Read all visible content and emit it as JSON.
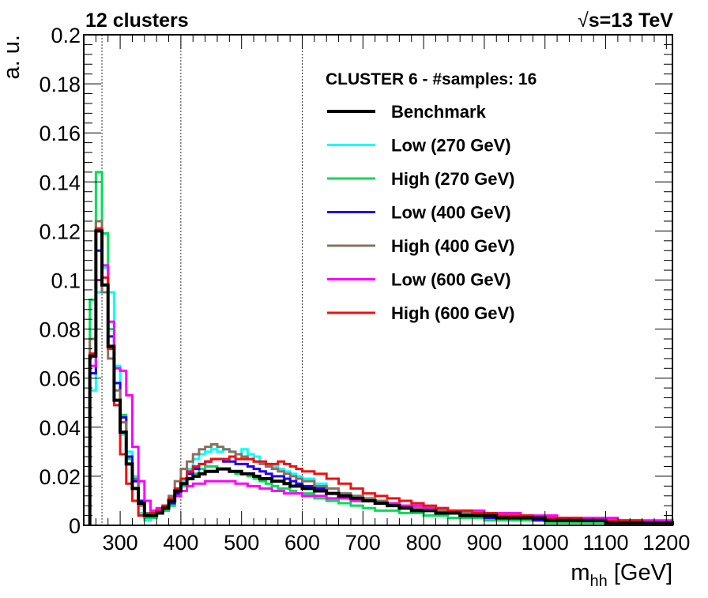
{
  "header": {
    "left": "12 clusters",
    "right_sqrt": "√",
    "right_rest": "s=13 TeV"
  },
  "chart_data": {
    "type": "line",
    "title": "12 clusters",
    "annotation": "√s=13 TeV",
    "xlabel": "m_hh [GeV]",
    "xlabel_main": "m",
    "xlabel_sub": "hh",
    "xlabel_unit": "[GeV]",
    "ylabel": "a. u.",
    "xlim": [
      240,
      1210
    ],
    "ylim": [
      0,
      0.2
    ],
    "xticks": [
      300,
      400,
      500,
      600,
      700,
      800,
      900,
      1000,
      1100,
      1200
    ],
    "yticks": [
      0,
      0.02,
      0.04,
      0.06,
      0.08,
      0.1,
      0.12,
      0.14,
      0.16,
      0.18,
      0.2
    ],
    "ytick_labels": [
      "0",
      "0.02",
      "0.04",
      "0.06",
      "0.08",
      "0.1",
      "0.12",
      "0.14",
      "0.16",
      "0.18",
      "0.2"
    ],
    "vlines": [
      270,
      400,
      600
    ],
    "bin_edges": [
      250,
      260,
      270,
      280,
      290,
      300,
      310,
      320,
      330,
      340,
      350,
      360,
      370,
      380,
      390,
      400,
      410,
      420,
      430,
      440,
      450,
      460,
      470,
      480,
      490,
      500,
      510,
      520,
      530,
      540,
      550,
      560,
      570,
      580,
      590,
      600,
      620,
      640,
      660,
      680,
      700,
      720,
      740,
      760,
      780,
      800,
      820,
      840,
      860,
      880,
      900,
      920,
      940,
      960,
      980,
      1000,
      1020,
      1040,
      1060,
      1080,
      1100,
      1120,
      1140,
      1160,
      1180,
      1200,
      1210
    ],
    "legend_title": "CLUSTER 6 - #samples: 16",
    "legend_location": "top-right",
    "series": [
      {
        "name": "Low (270 GeV)",
        "color": "#00ffff",
        "width": 3,
        "values": [
          0.055,
          0.095,
          0.105,
          0.095,
          0.065,
          0.037,
          0.03,
          0.02,
          0.005,
          0.002,
          0.003,
          0.006,
          0.006,
          0.008,
          0.013,
          0.018,
          0.023,
          0.027,
          0.029,
          0.03,
          0.031,
          0.03,
          0.031,
          0.03,
          0.029,
          0.031,
          0.029,
          0.028,
          0.026,
          0.025,
          0.024,
          0.023,
          0.022,
          0.021,
          0.02,
          0.019,
          0.017,
          0.015,
          0.013,
          0.012,
          0.011,
          0.01,
          0.009,
          0.008,
          0.007,
          0.007,
          0.006,
          0.005,
          0.005,
          0.004,
          0.004,
          0.003,
          0.003,
          0.003,
          0.003,
          0.002,
          0.002,
          0.002,
          0.002,
          0.002,
          0.001,
          0.001,
          0.001,
          0.001,
          0.001,
          0.001
        ]
      },
      {
        "name": "High (270 GeV)",
        "color": "#00dd55",
        "width": 3,
        "values": [
          0.092,
          0.144,
          0.119,
          0.08,
          0.058,
          0.045,
          0.027,
          0.018,
          0.004,
          0.003,
          0.003,
          0.005,
          0.006,
          0.008,
          0.012,
          0.016,
          0.019,
          0.021,
          0.023,
          0.024,
          0.024,
          0.023,
          0.023,
          0.022,
          0.021,
          0.021,
          0.02,
          0.019,
          0.018,
          0.017,
          0.016,
          0.015,
          0.015,
          0.014,
          0.013,
          0.013,
          0.011,
          0.01,
          0.009,
          0.008,
          0.007,
          0.006,
          0.006,
          0.005,
          0.005,
          0.004,
          0.004,
          0.003,
          0.003,
          0.003,
          0.002,
          0.002,
          0.002,
          0.002,
          0.002,
          0.001,
          0.001,
          0.001,
          0.001,
          0.001,
          0.001,
          0.001,
          0.001,
          0.001,
          0.001,
          0.001
        ]
      },
      {
        "name": "Low (400 GeV)",
        "color": "#2200ee",
        "width": 3,
        "values": [
          0.062,
          0.112,
          0.095,
          0.077,
          0.058,
          0.044,
          0.028,
          0.018,
          0.01,
          0.005,
          0.004,
          0.005,
          0.007,
          0.009,
          0.013,
          0.017,
          0.021,
          0.023,
          0.025,
          0.026,
          0.027,
          0.027,
          0.026,
          0.026,
          0.025,
          0.025,
          0.024,
          0.023,
          0.022,
          0.021,
          0.02,
          0.02,
          0.019,
          0.018,
          0.017,
          0.016,
          0.015,
          0.013,
          0.012,
          0.011,
          0.01,
          0.009,
          0.008,
          0.007,
          0.006,
          0.006,
          0.005,
          0.005,
          0.004,
          0.004,
          0.003,
          0.003,
          0.003,
          0.003,
          0.002,
          0.002,
          0.002,
          0.002,
          0.002,
          0.002,
          0.001,
          0.001,
          0.001,
          0.001,
          0.001,
          0.001
        ]
      },
      {
        "name": "High (400 GeV)",
        "color": "#8b7060",
        "width": 3,
        "values": [
          0.076,
          0.124,
          0.095,
          0.068,
          0.055,
          0.042,
          0.025,
          0.019,
          0.008,
          0.005,
          0.004,
          0.006,
          0.008,
          0.012,
          0.018,
          0.023,
          0.026,
          0.029,
          0.031,
          0.032,
          0.033,
          0.032,
          0.031,
          0.03,
          0.029,
          0.028,
          0.027,
          0.026,
          0.025,
          0.024,
          0.023,
          0.022,
          0.021,
          0.02,
          0.019,
          0.018,
          0.016,
          0.015,
          0.013,
          0.012,
          0.011,
          0.01,
          0.009,
          0.008,
          0.007,
          0.007,
          0.006,
          0.005,
          0.005,
          0.004,
          0.004,
          0.003,
          0.003,
          0.003,
          0.003,
          0.002,
          0.002,
          0.002,
          0.002,
          0.002,
          0.001,
          0.001,
          0.001,
          0.001,
          0.001,
          0.001
        ]
      },
      {
        "name": "Low (600 GeV)",
        "color": "#ff00ff",
        "width": 3,
        "values": [
          0.065,
          0.1,
          0.106,
          0.083,
          0.064,
          0.063,
          0.053,
          0.032,
          0.018,
          0.01,
          0.006,
          0.007,
          0.008,
          0.011,
          0.012,
          0.014,
          0.016,
          0.017,
          0.017,
          0.018,
          0.018,
          0.018,
          0.018,
          0.018,
          0.017,
          0.017,
          0.016,
          0.016,
          0.015,
          0.015,
          0.014,
          0.014,
          0.013,
          0.013,
          0.013,
          0.012,
          0.012,
          0.011,
          0.011,
          0.01,
          0.01,
          0.009,
          0.009,
          0.008,
          0.008,
          0.007,
          0.007,
          0.006,
          0.006,
          0.006,
          0.005,
          0.005,
          0.005,
          0.004,
          0.004,
          0.004,
          0.003,
          0.003,
          0.003,
          0.003,
          0.003,
          0.002,
          0.002,
          0.002,
          0.002,
          0.002
        ]
      },
      {
        "name": "High (600 GeV)",
        "color": "#ee1111",
        "width": 3,
        "values": [
          0.07,
          0.121,
          0.101,
          0.072,
          0.049,
          0.029,
          0.017,
          0.01,
          0.004,
          0.004,
          0.005,
          0.006,
          0.008,
          0.011,
          0.015,
          0.019,
          0.022,
          0.024,
          0.025,
          0.026,
          0.027,
          0.027,
          0.027,
          0.028,
          0.027,
          0.027,
          0.027,
          0.026,
          0.026,
          0.025,
          0.025,
          0.026,
          0.025,
          0.024,
          0.023,
          0.022,
          0.021,
          0.019,
          0.017,
          0.015,
          0.013,
          0.012,
          0.011,
          0.01,
          0.009,
          0.008,
          0.007,
          0.006,
          0.006,
          0.005,
          0.005,
          0.004,
          0.004,
          0.004,
          0.003,
          0.003,
          0.003,
          0.003,
          0.002,
          0.002,
          0.002,
          0.002,
          0.002,
          0.001,
          0.001,
          0.001
        ]
      },
      {
        "name": "Benchmark",
        "color": "#000000",
        "width": 4,
        "values": [
          0.069,
          0.12,
          0.098,
          0.073,
          0.051,
          0.038,
          0.025,
          0.015,
          0.009,
          0.004,
          0.004,
          0.005,
          0.007,
          0.01,
          0.014,
          0.017,
          0.019,
          0.02,
          0.021,
          0.022,
          0.022,
          0.023,
          0.023,
          0.022,
          0.022,
          0.021,
          0.021,
          0.02,
          0.019,
          0.019,
          0.018,
          0.018,
          0.017,
          0.016,
          0.016,
          0.015,
          0.014,
          0.013,
          0.012,
          0.011,
          0.01,
          0.009,
          0.008,
          0.007,
          0.006,
          0.006,
          0.005,
          0.005,
          0.004,
          0.004,
          0.004,
          0.003,
          0.003,
          0.003,
          0.003,
          0.002,
          0.002,
          0.002,
          0.002,
          0.002,
          0.001,
          0.001,
          0.001,
          0.001,
          0.001,
          0.001
        ]
      }
    ],
    "legend_order": [
      "Benchmark",
      "Low (270 GeV)",
      "High (270 GeV)",
      "Low (400 GeV)",
      "High (400 GeV)",
      "Low (600 GeV)",
      "High (600 GeV)"
    ]
  }
}
